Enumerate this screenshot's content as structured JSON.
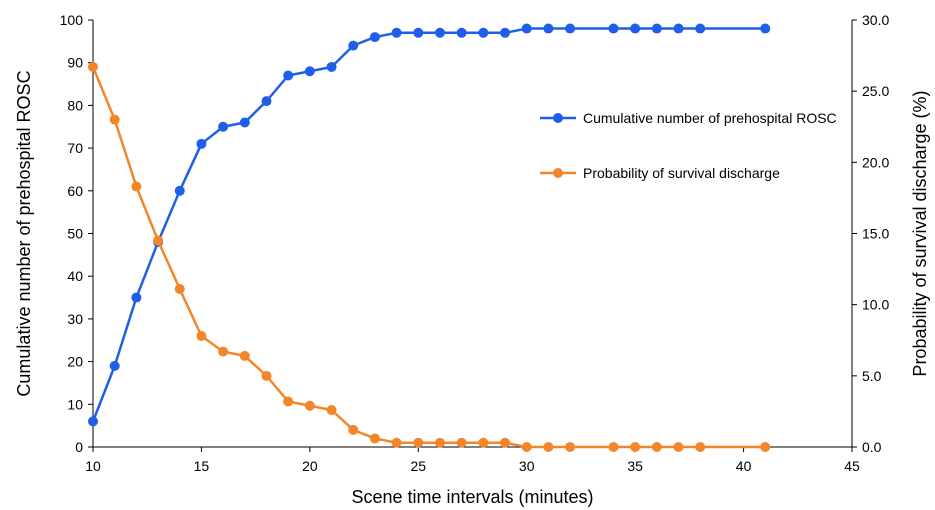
{
  "chart_data": {
    "type": "line",
    "xlabel": "Scene time intervals (minutes)",
    "ylabel_left": "Cumulative number of prehospital ROSC",
    "ylabel_right": "Probability of survival discharge (%)",
    "xlim": [
      10,
      45
    ],
    "x_ticks": [
      "10",
      "15",
      "20",
      "25",
      "30",
      "35",
      "40",
      "45"
    ],
    "ylim_left": [
      0,
      100
    ],
    "y_ticks_left": [
      "0",
      "10",
      "20",
      "30",
      "40",
      "50",
      "60",
      "70",
      "80",
      "90",
      "100"
    ],
    "ylim_right": [
      0,
      30
    ],
    "y_ticks_right": [
      "0.0",
      "5.0",
      "10.0",
      "15.0",
      "20.0",
      "25.0",
      "30.0"
    ],
    "grid": false,
    "legend_placement": "right",
    "series": [
      {
        "name": "Cumulative number of prehospital ROSC",
        "axis": "left",
        "color": "#1f5fe8",
        "x": [
          10,
          11,
          12,
          13,
          14,
          15,
          16,
          17,
          18,
          19,
          20,
          21,
          22,
          23,
          24,
          25,
          26,
          27,
          28,
          29,
          30,
          31,
          32,
          34,
          35,
          36,
          37,
          38,
          41
        ],
        "values": [
          6,
          19,
          35,
          48,
          60,
          71,
          75,
          76,
          81,
          87,
          88,
          89,
          94,
          96,
          97,
          97,
          97,
          97,
          97,
          97,
          98,
          98,
          98,
          98,
          98,
          98,
          98,
          98,
          98
        ]
      },
      {
        "name": "Probability of survival discharge",
        "axis": "right",
        "color": "#f4862a",
        "x": [
          10,
          11,
          12,
          13,
          14,
          15,
          16,
          17,
          18,
          19,
          20,
          21,
          22,
          23,
          24,
          25,
          26,
          27,
          28,
          29,
          30,
          31,
          32,
          34,
          35,
          36,
          37,
          38,
          41
        ],
        "values": [
          26.7,
          23.0,
          18.3,
          14.5,
          11.1,
          7.8,
          6.7,
          6.4,
          5.0,
          3.2,
          2.9,
          2.6,
          1.2,
          0.6,
          0.3,
          0.3,
          0.3,
          0.3,
          0.3,
          0.3,
          0.0,
          0.0,
          0.0,
          0.0,
          0.0,
          0.0,
          0.0,
          0.0,
          0.0
        ]
      }
    ]
  }
}
